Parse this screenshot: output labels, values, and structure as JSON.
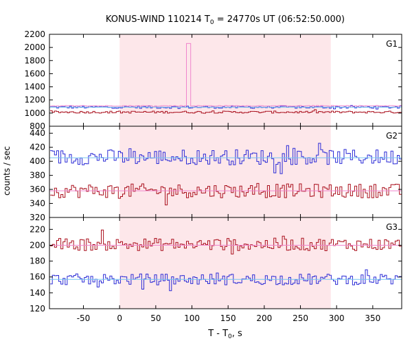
{
  "chart_data": {
    "type": "line",
    "title_main": "KONUS-WIND 110214 T",
    "title_sub": "0",
    "title_rest": " = 24770s UT (06:52:50.000)",
    "ylabel": "counts / sec",
    "xlabel_main": "T - T",
    "xlabel_sub": "0",
    "xlabel_rest": ", s",
    "xlim": [
      -97,
      390
    ],
    "x_ticks": [
      -50,
      0,
      50,
      100,
      150,
      200,
      250,
      300,
      350
    ],
    "shaded_interval": [
      0,
      292
    ],
    "colors": {
      "shade": "#fde7ea",
      "blue": "#2a2ad6",
      "red": "#aa0f1c",
      "pink": "#f084cc",
      "fit": "#74c3f0"
    },
    "panels": [
      {
        "label": "G1",
        "ylim": [
          800,
          2200
        ],
        "y_ticks": [
          800,
          1000,
          1200,
          1400,
          1600,
          1800,
          2000,
          2200
        ],
        "series": [
          {
            "color_key": "blue",
            "level": 1090,
            "amplitude": 18
          },
          {
            "color_key": "red",
            "level": 1015,
            "amplitude": 16
          },
          {
            "color_key": "pink",
            "level": 1110,
            "amplitude": 6,
            "spike": {
              "x_start": 92,
              "x_end": 96,
              "value": 2060
            }
          }
        ],
        "fit_lines": [
          {
            "color_key": "fit",
            "value": 1090
          }
        ]
      },
      {
        "label": "G2",
        "ylim": [
          320,
          450
        ],
        "y_ticks": [
          320,
          340,
          360,
          380,
          400,
          420,
          440
        ],
        "series": [
          {
            "color_key": "blue",
            "level": 406,
            "amplitude": 11
          },
          {
            "color_key": "red",
            "level": 358,
            "amplitude": 10
          }
        ],
        "fit_lines": [
          {
            "color_key": "fit",
            "value": 405
          },
          {
            "color_key": "pink",
            "value": 358
          }
        ]
      },
      {
        "label": "G3",
        "ylim": [
          120,
          235
        ],
        "y_ticks": [
          120,
          140,
          160,
          180,
          200,
          220
        ],
        "series": [
          {
            "color_key": "red",
            "level": 201,
            "amplitude": 8
          },
          {
            "color_key": "blue",
            "level": 157,
            "amplitude": 7
          }
        ],
        "fit_lines": [
          {
            "color_key": "fit",
            "value": 157
          },
          {
            "color_key": "pink",
            "value": 200
          }
        ]
      }
    ]
  }
}
